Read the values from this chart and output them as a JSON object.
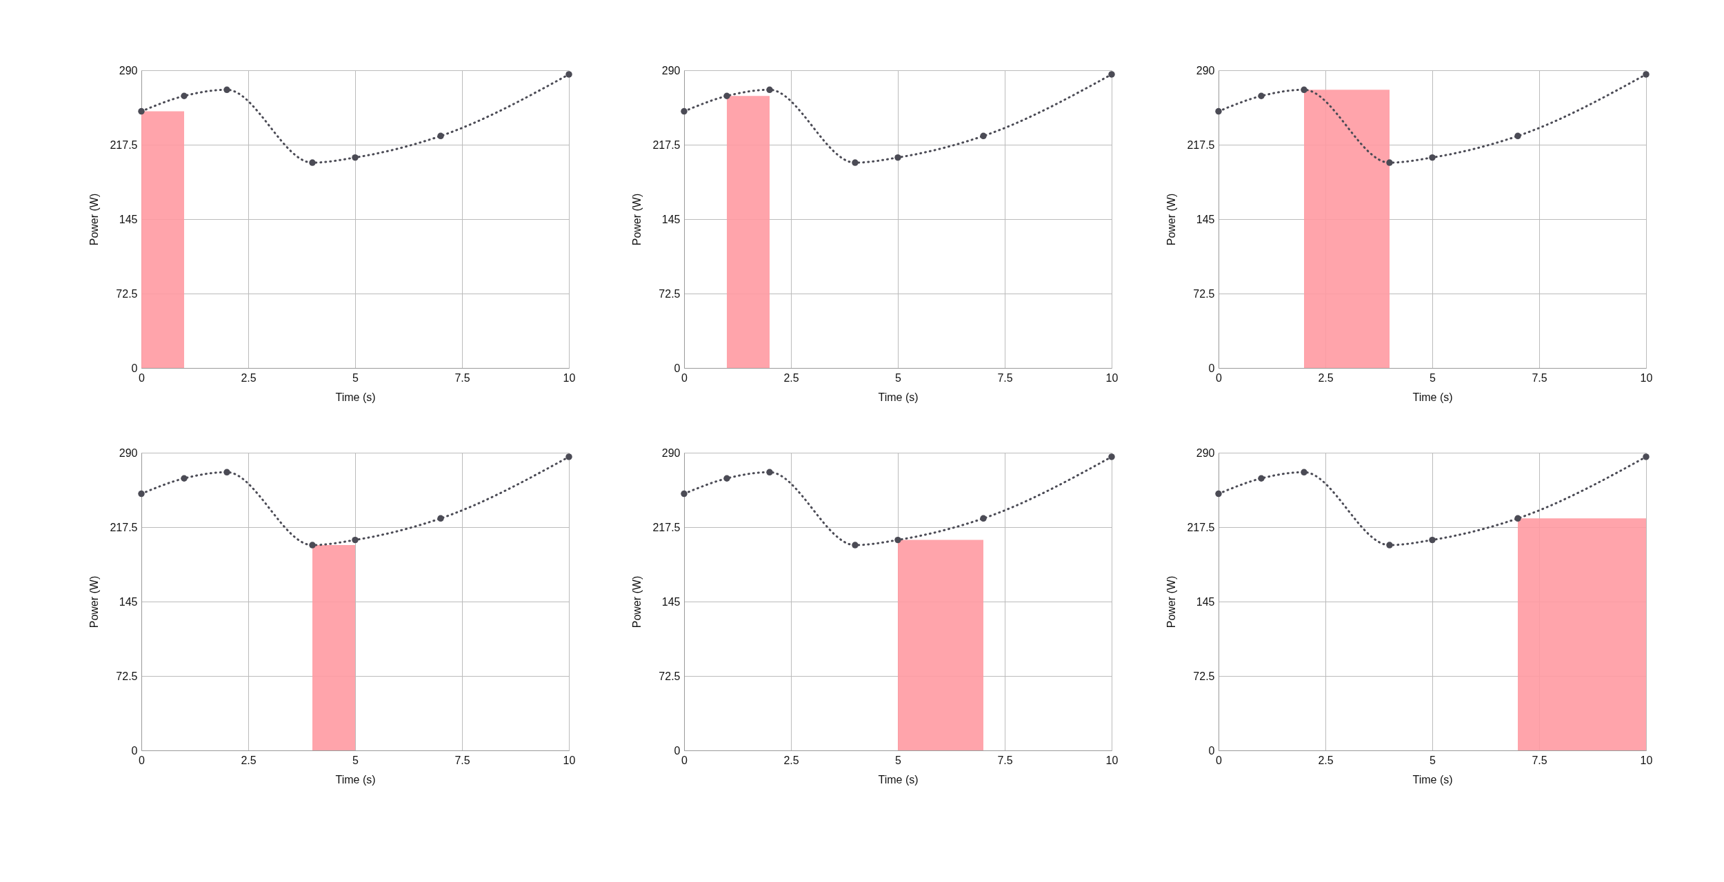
{
  "chart_data": [
    {
      "type": "line",
      "xlabel": "Time (s)",
      "ylabel": "Power (W)",
      "x": [
        0,
        1,
        2,
        4,
        5,
        7,
        10
      ],
      "xlim": [
        0,
        10
      ],
      "xticks": [
        0,
        2.5,
        5,
        7.5,
        10
      ],
      "ylim": [
        0,
        290
      ],
      "yticks": [
        0,
        72.5,
        145,
        217.5,
        290
      ],
      "grid": true,
      "marker": "circle",
      "line_style": "dotted",
      "series": [
        {
          "type": "histogram",
          "bins": [
            0,
            1
          ],
          "values": [
            250
          ],
          "color": "#ff9aa2"
        },
        {
          "type": "line",
          "values": [
            250,
            265,
            271,
            200,
            205,
            226,
            286
          ],
          "color": "#4b4b55"
        }
      ]
    },
    {
      "type": "line",
      "xlabel": "Time (s)",
      "ylabel": "Power (W)",
      "x": [
        0,
        1,
        2,
        4,
        5,
        7,
        10
      ],
      "xlim": [
        0,
        10
      ],
      "xticks": [
        0,
        2.5,
        5,
        7.5,
        10
      ],
      "ylim": [
        0,
        290
      ],
      "yticks": [
        0,
        72.5,
        145,
        217.5,
        290
      ],
      "grid": true,
      "marker": "circle",
      "line_style": "dotted",
      "series": [
        {
          "type": "histogram",
          "bins": [
            1,
            2
          ],
          "values": [
            265
          ],
          "color": "#ff9aa2"
        },
        {
          "type": "line",
          "values": [
            250,
            265,
            271,
            200,
            205,
            226,
            286
          ],
          "color": "#4b4b55"
        }
      ]
    },
    {
      "type": "line",
      "xlabel": "Time (s)",
      "ylabel": "Power (W)",
      "x": [
        0,
        1,
        2,
        4,
        5,
        7,
        10
      ],
      "xlim": [
        0,
        10
      ],
      "xticks": [
        0,
        2.5,
        5,
        7.5,
        10
      ],
      "ylim": [
        0,
        290
      ],
      "yticks": [
        0,
        72.5,
        145,
        217.5,
        290
      ],
      "grid": true,
      "marker": "circle",
      "line_style": "dotted",
      "series": [
        {
          "type": "histogram",
          "bins": [
            2,
            4
          ],
          "values": [
            271
          ],
          "color": "#ff9aa2"
        },
        {
          "type": "line",
          "values": [
            250,
            265,
            271,
            200,
            205,
            226,
            286
          ],
          "color": "#4b4b55"
        }
      ]
    },
    {
      "type": "line",
      "xlabel": "Time (s)",
      "ylabel": "Power (W)",
      "x": [
        0,
        1,
        2,
        4,
        5,
        7,
        10
      ],
      "xlim": [
        0,
        10
      ],
      "xticks": [
        0,
        2.5,
        5,
        7.5,
        10
      ],
      "ylim": [
        0,
        290
      ],
      "yticks": [
        0,
        72.5,
        145,
        217.5,
        290
      ],
      "grid": true,
      "marker": "circle",
      "line_style": "dotted",
      "series": [
        {
          "type": "histogram",
          "bins": [
            4,
            5
          ],
          "values": [
            200
          ],
          "color": "#ff9aa2"
        },
        {
          "type": "line",
          "values": [
            250,
            265,
            271,
            200,
            205,
            226,
            286
          ],
          "color": "#4b4b55"
        }
      ]
    },
    {
      "type": "line",
      "xlabel": "Time (s)",
      "ylabel": "Power (W)",
      "x": [
        0,
        1,
        2,
        4,
        5,
        7,
        10
      ],
      "xlim": [
        0,
        10
      ],
      "xticks": [
        0,
        2.5,
        5,
        7.5,
        10
      ],
      "ylim": [
        0,
        290
      ],
      "yticks": [
        0,
        72.5,
        145,
        217.5,
        290
      ],
      "grid": true,
      "marker": "circle",
      "line_style": "dotted",
      "series": [
        {
          "type": "histogram",
          "bins": [
            5,
            7
          ],
          "values": [
            205
          ],
          "color": "#ff9aa2"
        },
        {
          "type": "line",
          "values": [
            250,
            265,
            271,
            200,
            205,
            226,
            286
          ],
          "color": "#4b4b55"
        }
      ]
    },
    {
      "type": "line",
      "xlabel": "Time (s)",
      "ylabel": "Power (W)",
      "x": [
        0,
        1,
        2,
        4,
        5,
        7,
        10
      ],
      "xlim": [
        0,
        10
      ],
      "xticks": [
        0,
        2.5,
        5,
        7.5,
        10
      ],
      "ylim": [
        0,
        290
      ],
      "yticks": [
        0,
        72.5,
        145,
        217.5,
        290
      ],
      "grid": true,
      "marker": "circle",
      "line_style": "dotted",
      "series": [
        {
          "type": "histogram",
          "bins": [
            7,
            10
          ],
          "values": [
            226
          ],
          "color": "#ff9aa2"
        },
        {
          "type": "line",
          "values": [
            250,
            265,
            271,
            200,
            205,
            226,
            286
          ],
          "color": "#4b4b55"
        }
      ]
    }
  ]
}
